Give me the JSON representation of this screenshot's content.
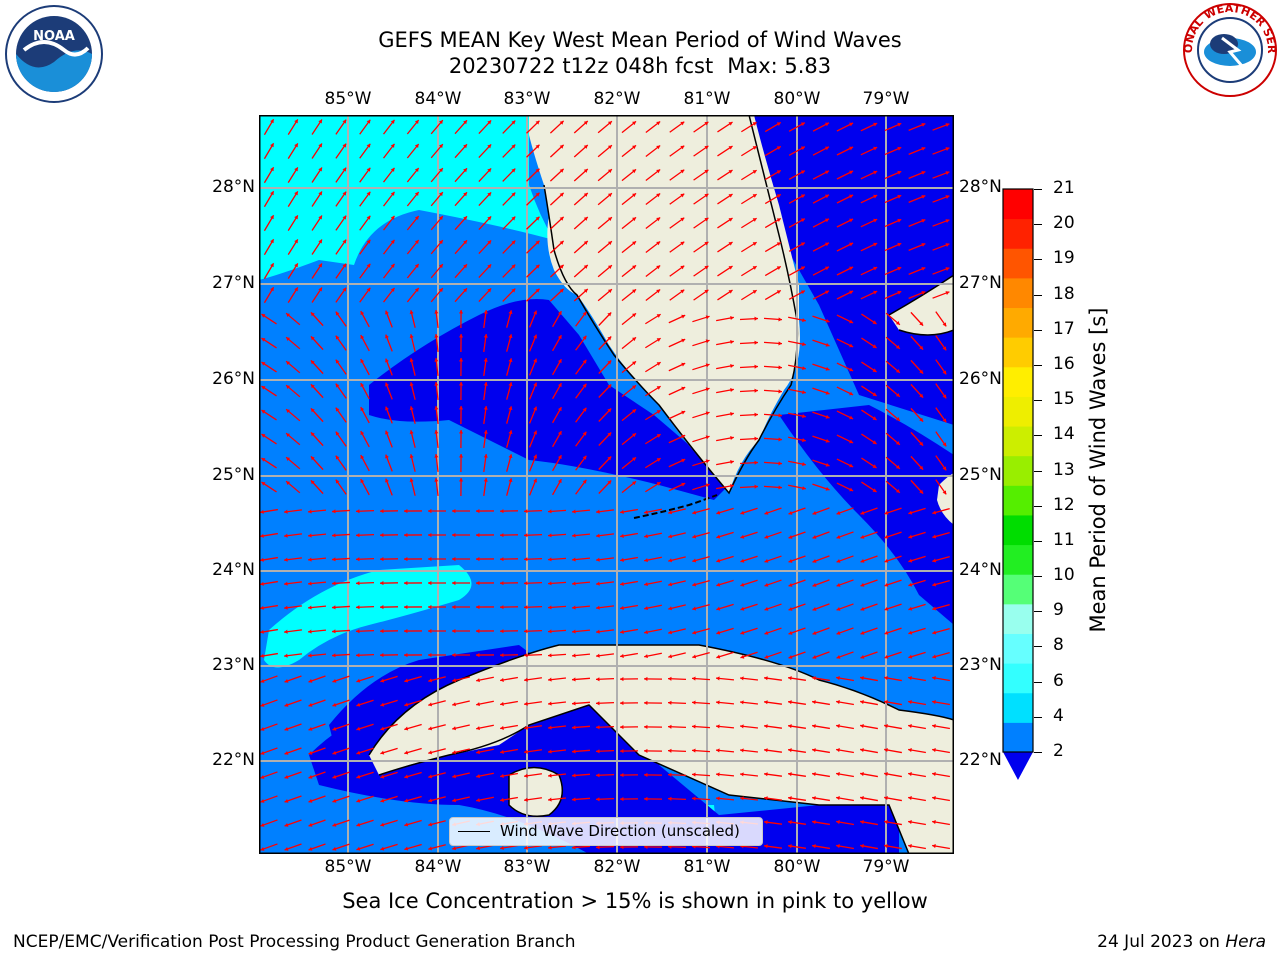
{
  "title": {
    "line1": "GEFS MEAN Key West Mean Period of Wind Waves",
    "line2_run": "20230722 t12z 048h fcst",
    "line2_max": "Max: 5.83"
  },
  "logos": {
    "left": {
      "name": "noaa-logo",
      "text": "NOAA"
    },
    "right": {
      "name": "national-weather-service-logo",
      "text": "NATIONAL WEATHER SERVICE"
    }
  },
  "map": {
    "lon_ticks": [
      "85°W",
      "84°W",
      "83°W",
      "82°W",
      "81°W",
      "80°W",
      "79°W"
    ],
    "lat_ticks": [
      "28°N",
      "27°N",
      "26°N",
      "25°N",
      "24°N",
      "23°N",
      "22°N"
    ],
    "colors": {
      "land": "#eeeedd",
      "ocean_2_4": "#0080ff",
      "ocean_lt2": "#0000ee",
      "ocean_4_6": "#00ffff",
      "arrow": "#ff0000",
      "grid": "#b0b0b0"
    },
    "legend": "Wind Wave Direction (unscaled)"
  },
  "colorbar": {
    "label": "Mean Period of Wind Waves [s]",
    "ticks": [
      "2",
      "4",
      "6",
      "8",
      "9",
      "10",
      "11",
      "12",
      "13",
      "14",
      "15",
      "16",
      "17",
      "18",
      "19",
      "20",
      "21"
    ],
    "colors": [
      "#0080ff",
      "#00e0ff",
      "#33ffff",
      "#66ffff",
      "#99ffee",
      "#55ff77",
      "#22ee22",
      "#00dd00",
      "#55ee00",
      "#99ee00",
      "#ccee00",
      "#eeee00",
      "#ffee00",
      "#ffcc00",
      "#ffaa00",
      "#ff8800",
      "#ff5500",
      "#ff2200",
      "#ff0000"
    ],
    "extend_min_color": "#0000ee"
  },
  "caption": "Sea Ice Concentration > 15% is shown in pink to yellow",
  "footer": {
    "left": "NCEP/EMC/Verification Post Processing Product Generation Branch",
    "right_date": "24 Jul 2023 on",
    "right_machine": "Hera"
  }
}
